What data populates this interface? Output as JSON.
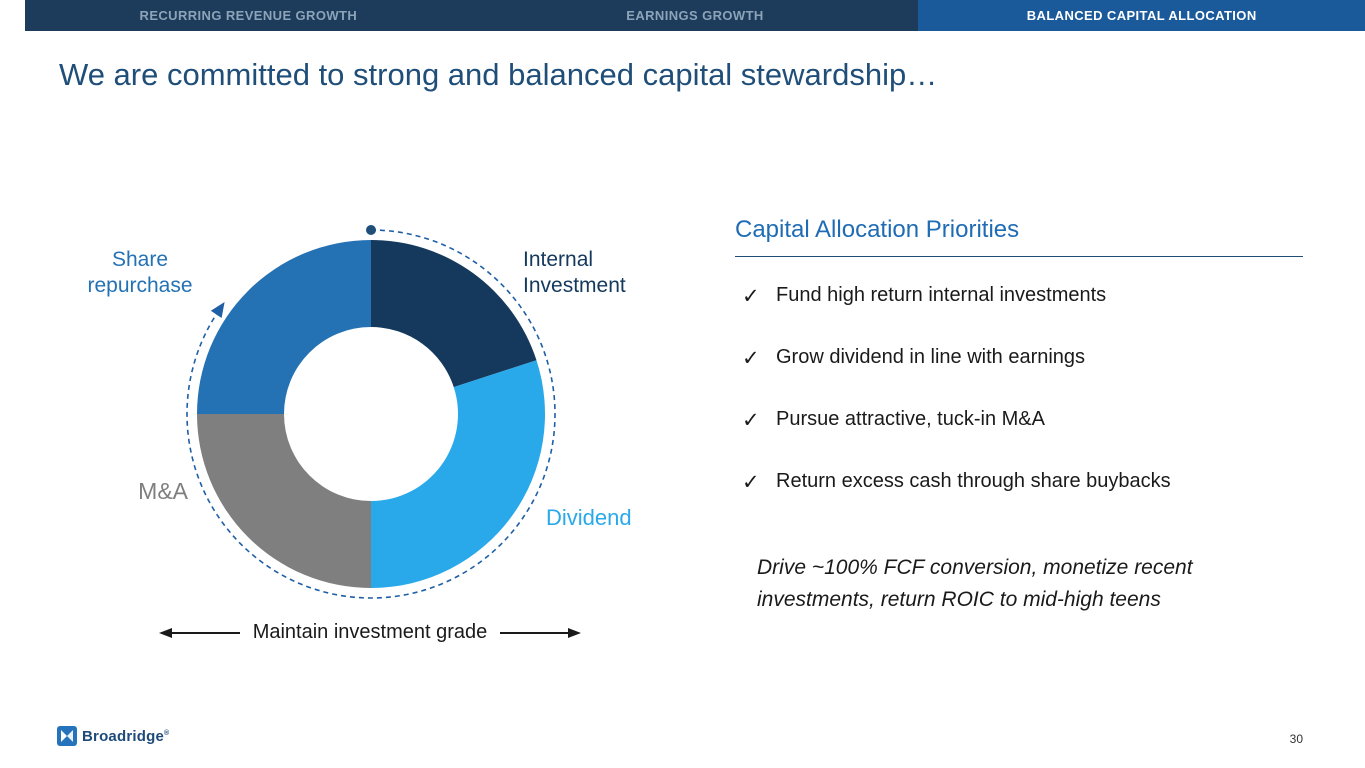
{
  "nav": {
    "tabs": [
      {
        "label": "RECURRING REVENUE GROWTH",
        "active": false
      },
      {
        "label": "EARNINGS GROWTH",
        "active": false
      },
      {
        "label": "BALANCED CAPITAL ALLOCATION",
        "active": true
      }
    ]
  },
  "slide": {
    "title": "We are committed to strong and balanced capital stewardship…",
    "page_number": "30"
  },
  "chart_data": {
    "type": "pie",
    "subtype": "donut",
    "direction": "clockwise",
    "start_angle_deg": 0,
    "segments": [
      {
        "label": "Internal Investment",
        "value": 20,
        "color": "#14395d"
      },
      {
        "label": "Dividend",
        "value": 30,
        "color": "#29a9ea"
      },
      {
        "label": "M&A",
        "value": 25,
        "color": "#7f7f7f"
      },
      {
        "label": "Share repurchase",
        "value": 25,
        "color": "#2472b4"
      }
    ],
    "annotation": "dashed cycle ring with dot at top and clockwise arrow",
    "caption": "Maintain investment grade"
  },
  "priorities": {
    "heading": "Capital Allocation Priorities",
    "check_glyph": "✓",
    "items": [
      "Fund high return internal investments",
      "Grow dividend in line with earnings",
      "Pursue attractive, tuck-in M&A",
      "Return excess cash through share buybacks"
    ],
    "note": "Drive ~100% FCF conversion, monetize recent investments, return ROIC to mid-high teens"
  },
  "footer": {
    "brand": "Broadridge",
    "registered_mark": "®"
  },
  "colors": {
    "nav_bg": "#1d3c5c",
    "nav_active_bg": "#1b5a9a",
    "nav_inactive_text": "#8ca3b8",
    "title_text": "#1f4e79",
    "heading_blue": "#1f6cb5",
    "dashed_ring": "#1f5fa5",
    "body_text": "#1a1a1a"
  }
}
